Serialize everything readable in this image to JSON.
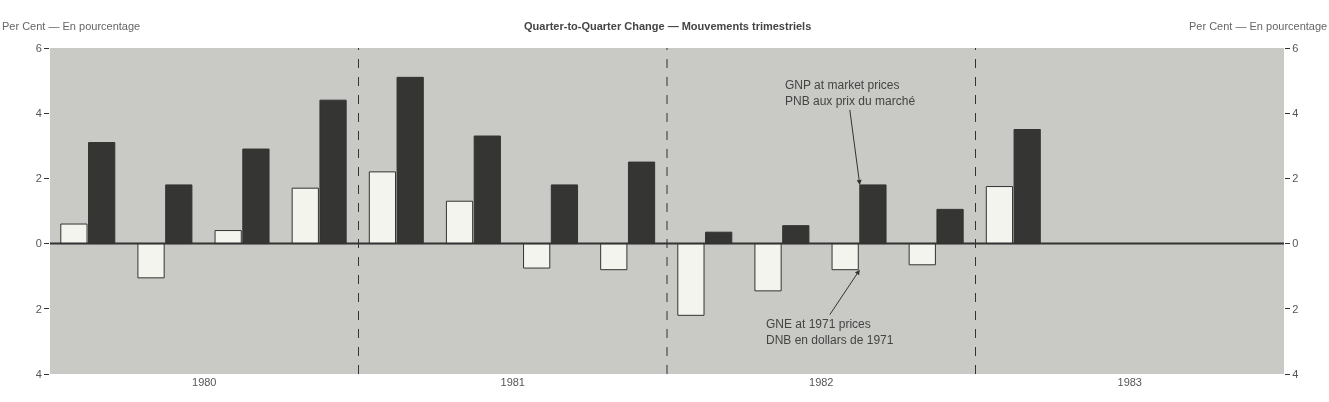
{
  "chart_data": {
    "type": "bar",
    "title": "Quarter-to-Quarter Change — Mouvements trimestriels",
    "ylabel": "Per Cent — En pourcentage",
    "y2label": "Per Cent — En pourcentage",
    "x": [
      1980.125,
      1980.375,
      1980.625,
      1980.875,
      1981.125,
      1981.375,
      1981.625,
      1981.875,
      1982.125,
      1982.375,
      1982.625,
      1982.875,
      1983.125
    ],
    "series": [
      {
        "color": "#f4f4ee",
        "values": [
          0.6,
          -1.05,
          0.4,
          1.7,
          2.2,
          1.3,
          -0.75,
          -0.8,
          -2.2,
          -1.45,
          -0.8,
          -0.65,
          1.75
        ]
      },
      {
        "color": "#353533",
        "values": [
          3.1,
          1.8,
          2.9,
          4.4,
          5.1,
          3.3,
          1.8,
          2.5,
          0.35,
          0.55,
          1.8,
          1.05,
          3.5
        ]
      }
    ],
    "xlim": [
      1980,
      1984
    ],
    "xticks": [
      {
        "value": 1980.5,
        "label": "1980"
      },
      {
        "value": 1981.5,
        "label": "1981"
      },
      {
        "value": 1982.5,
        "label": "1982"
      },
      {
        "value": 1983.5,
        "label": "1983"
      }
    ],
    "ylim": [
      -4,
      6
    ],
    "yticks": [
      {
        "value": -4,
        "label": "4"
      },
      {
        "value": -2,
        "label": "2"
      },
      0,
      2,
      4,
      6
    ],
    "y2lim": [
      -4,
      6
    ],
    "y2ticks": [
      {
        "value": -4,
        "label": "4"
      },
      {
        "value": -2,
        "label": "2"
      },
      0,
      2,
      4,
      6
    ],
    "ref_lines": [
      {
        "axis": "y",
        "value": 0,
        "color": "#333333",
        "line_style": "solid"
      },
      {
        "axis": "x",
        "value": 1981,
        "color": "#333333",
        "line_style": "dashed"
      },
      {
        "axis": "x",
        "value": 1982,
        "color": "#333333",
        "line_style": "dashed"
      },
      {
        "axis": "x",
        "value": 1983,
        "color": "#333333",
        "line_style": "dashed"
      }
    ],
    "annotations": [
      {
        "text": "GNP at market prices\nPNB aux prix du marché",
        "x": 1982.625,
        "y": 1.8
      },
      {
        "text": "GNE at 1971 prices\nDNB en dollars de 1971",
        "x": 1982.625,
        "y": -0.8
      }
    ],
    "grid": false
  }
}
